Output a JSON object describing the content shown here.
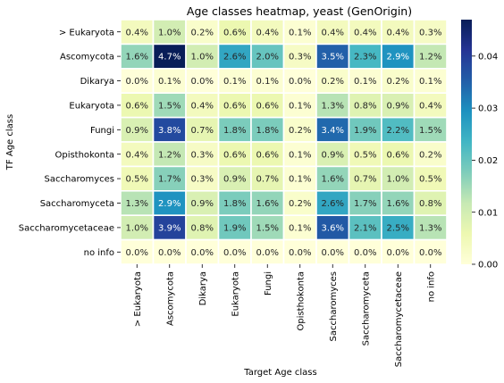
{
  "chart_data": {
    "type": "heatmap",
    "title": "Age classes heatmap, yeast (GenOrigin)",
    "xlabel": "Target Age class",
    "ylabel": "TF Age class",
    "rows": [
      "> Eukaryota",
      "Ascomycota",
      "Dikarya",
      "Eukaryota",
      "Fungi",
      "Opisthokonta",
      "Saccharomyces",
      "Saccharomyceta",
      "Saccharomycetaceae",
      "no info"
    ],
    "columns": [
      "> Eukaryota",
      "Ascomycota",
      "Dikarya",
      "Eukaryota",
      "Fungi",
      "Opisthokonta",
      "Saccharomyces",
      "Saccharomyceta",
      "Saccharomycetaceae",
      "no info"
    ],
    "values": [
      [
        0.4,
        1.0,
        0.2,
        0.6,
        0.4,
        0.1,
        0.4,
        0.4,
        0.4,
        0.3
      ],
      [
        1.6,
        4.7,
        1.0,
        2.6,
        2.0,
        0.3,
        3.5,
        2.3,
        2.9,
        1.2
      ],
      [
        0.0,
        0.1,
        0.0,
        0.1,
        0.1,
        0.0,
        0.2,
        0.1,
        0.2,
        0.1
      ],
      [
        0.6,
        1.5,
        0.4,
        0.6,
        0.6,
        0.1,
        1.3,
        0.8,
        0.9,
        0.4
      ],
      [
        0.9,
        3.8,
        0.7,
        1.8,
        1.8,
        0.2,
        3.4,
        1.9,
        2.2,
        1.5
      ],
      [
        0.4,
        1.2,
        0.3,
        0.6,
        0.6,
        0.1,
        0.9,
        0.5,
        0.6,
        0.2
      ],
      [
        0.5,
        1.7,
        0.3,
        0.9,
        0.7,
        0.1,
        1.6,
        0.7,
        1.0,
        0.5
      ],
      [
        1.3,
        2.9,
        0.9,
        1.8,
        1.6,
        0.2,
        2.6,
        1.7,
        1.6,
        0.8
      ],
      [
        1.0,
        3.9,
        0.8,
        1.9,
        1.5,
        0.1,
        3.6,
        2.1,
        2.5,
        1.3
      ],
      [
        0.0,
        0.0,
        0.0,
        0.0,
        0.0,
        0.0,
        0.0,
        0.0,
        0.0,
        0.0
      ]
    ],
    "value_format": "percent",
    "colormap": "YlGnBu",
    "colorbar": {
      "range": [
        0.0,
        0.047
      ],
      "ticks": [
        0.0,
        0.01,
        0.02,
        0.03,
        0.04
      ],
      "tick_labels": [
        "0.00",
        "0.01",
        "0.02",
        "0.03",
        "0.04"
      ]
    },
    "colors": {
      "cmap_stops": [
        "#ffffd9",
        "#edf8b1",
        "#c7e9b4",
        "#7fcdbb",
        "#41b6c4",
        "#1d91c0",
        "#225ea8",
        "#253494",
        "#081d58"
      ],
      "light_text": "#ffffff",
      "dark_text": "#262626",
      "cell_border": "#ffffff"
    }
  }
}
